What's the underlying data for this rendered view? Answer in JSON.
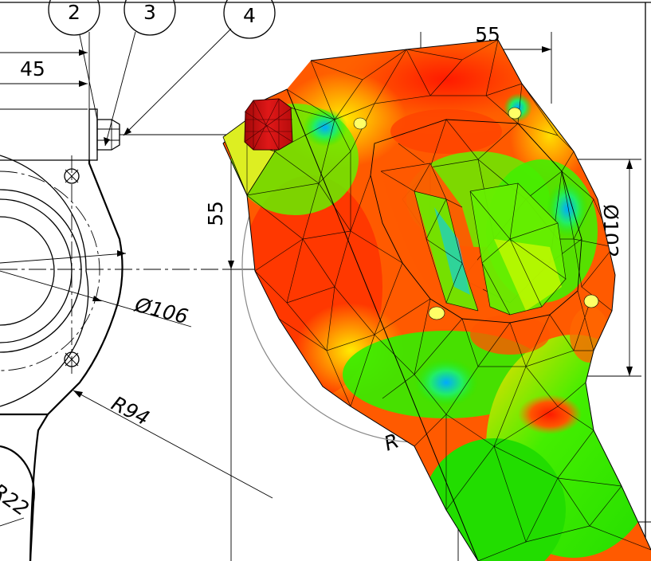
{
  "drawing": {
    "balloons": [
      "2",
      "3",
      "4"
    ],
    "dimensions": {
      "horizontal_left": "45",
      "horizontal_top": "55",
      "vertical_left": "55",
      "vertical_right": "Ø102",
      "diameter": "Ø106",
      "radius_large": "R94",
      "radius_small": "R22",
      "radius_partial": "R"
    }
  },
  "colors": {
    "stress_high": "#ff2a00",
    "stress_mid_high": "#ff8a00",
    "stress_mid": "#ffff00",
    "stress_low": "#22ee00",
    "stress_lowest": "#00c8ff",
    "bolt": "#d41010"
  }
}
